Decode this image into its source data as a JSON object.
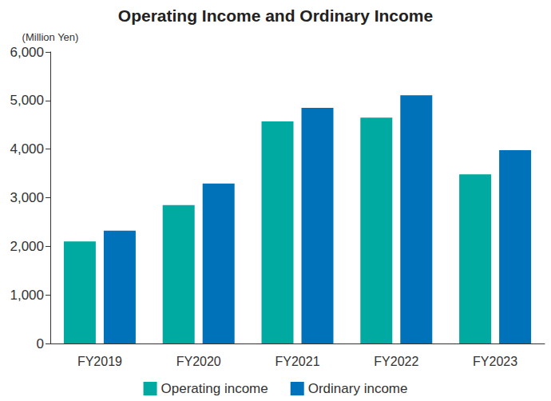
{
  "chart_data": {
    "type": "bar",
    "title": "Operating Income and Ordinary Income",
    "ylabel": "(Million Yen)",
    "categories": [
      "FY2019",
      "FY2020",
      "FY2021",
      "FY2022",
      "FY2023"
    ],
    "series": [
      {
        "name": "Operating income",
        "color": "#00aaa0",
        "values": [
          2100,
          2850,
          4570,
          4650,
          3480
        ]
      },
      {
        "name": "Ordinary income",
        "color": "#0072b9",
        "values": [
          2320,
          3290,
          4850,
          5110,
          3980
        ]
      }
    ],
    "ylim": [
      0,
      6000
    ],
    "yticks": [
      0,
      {
        "value": 1000,
        "label": "1,000"
      },
      {
        "value": 2000,
        "label": "2,000"
      },
      {
        "value": 3000,
        "label": "3,000"
      },
      {
        "value": 4000,
        "label": "4,000"
      },
      {
        "value": 5000,
        "label": "5,000"
      },
      {
        "value": 6000,
        "label": "6,000"
      }
    ],
    "grid": false,
    "legend": "bottom"
  }
}
